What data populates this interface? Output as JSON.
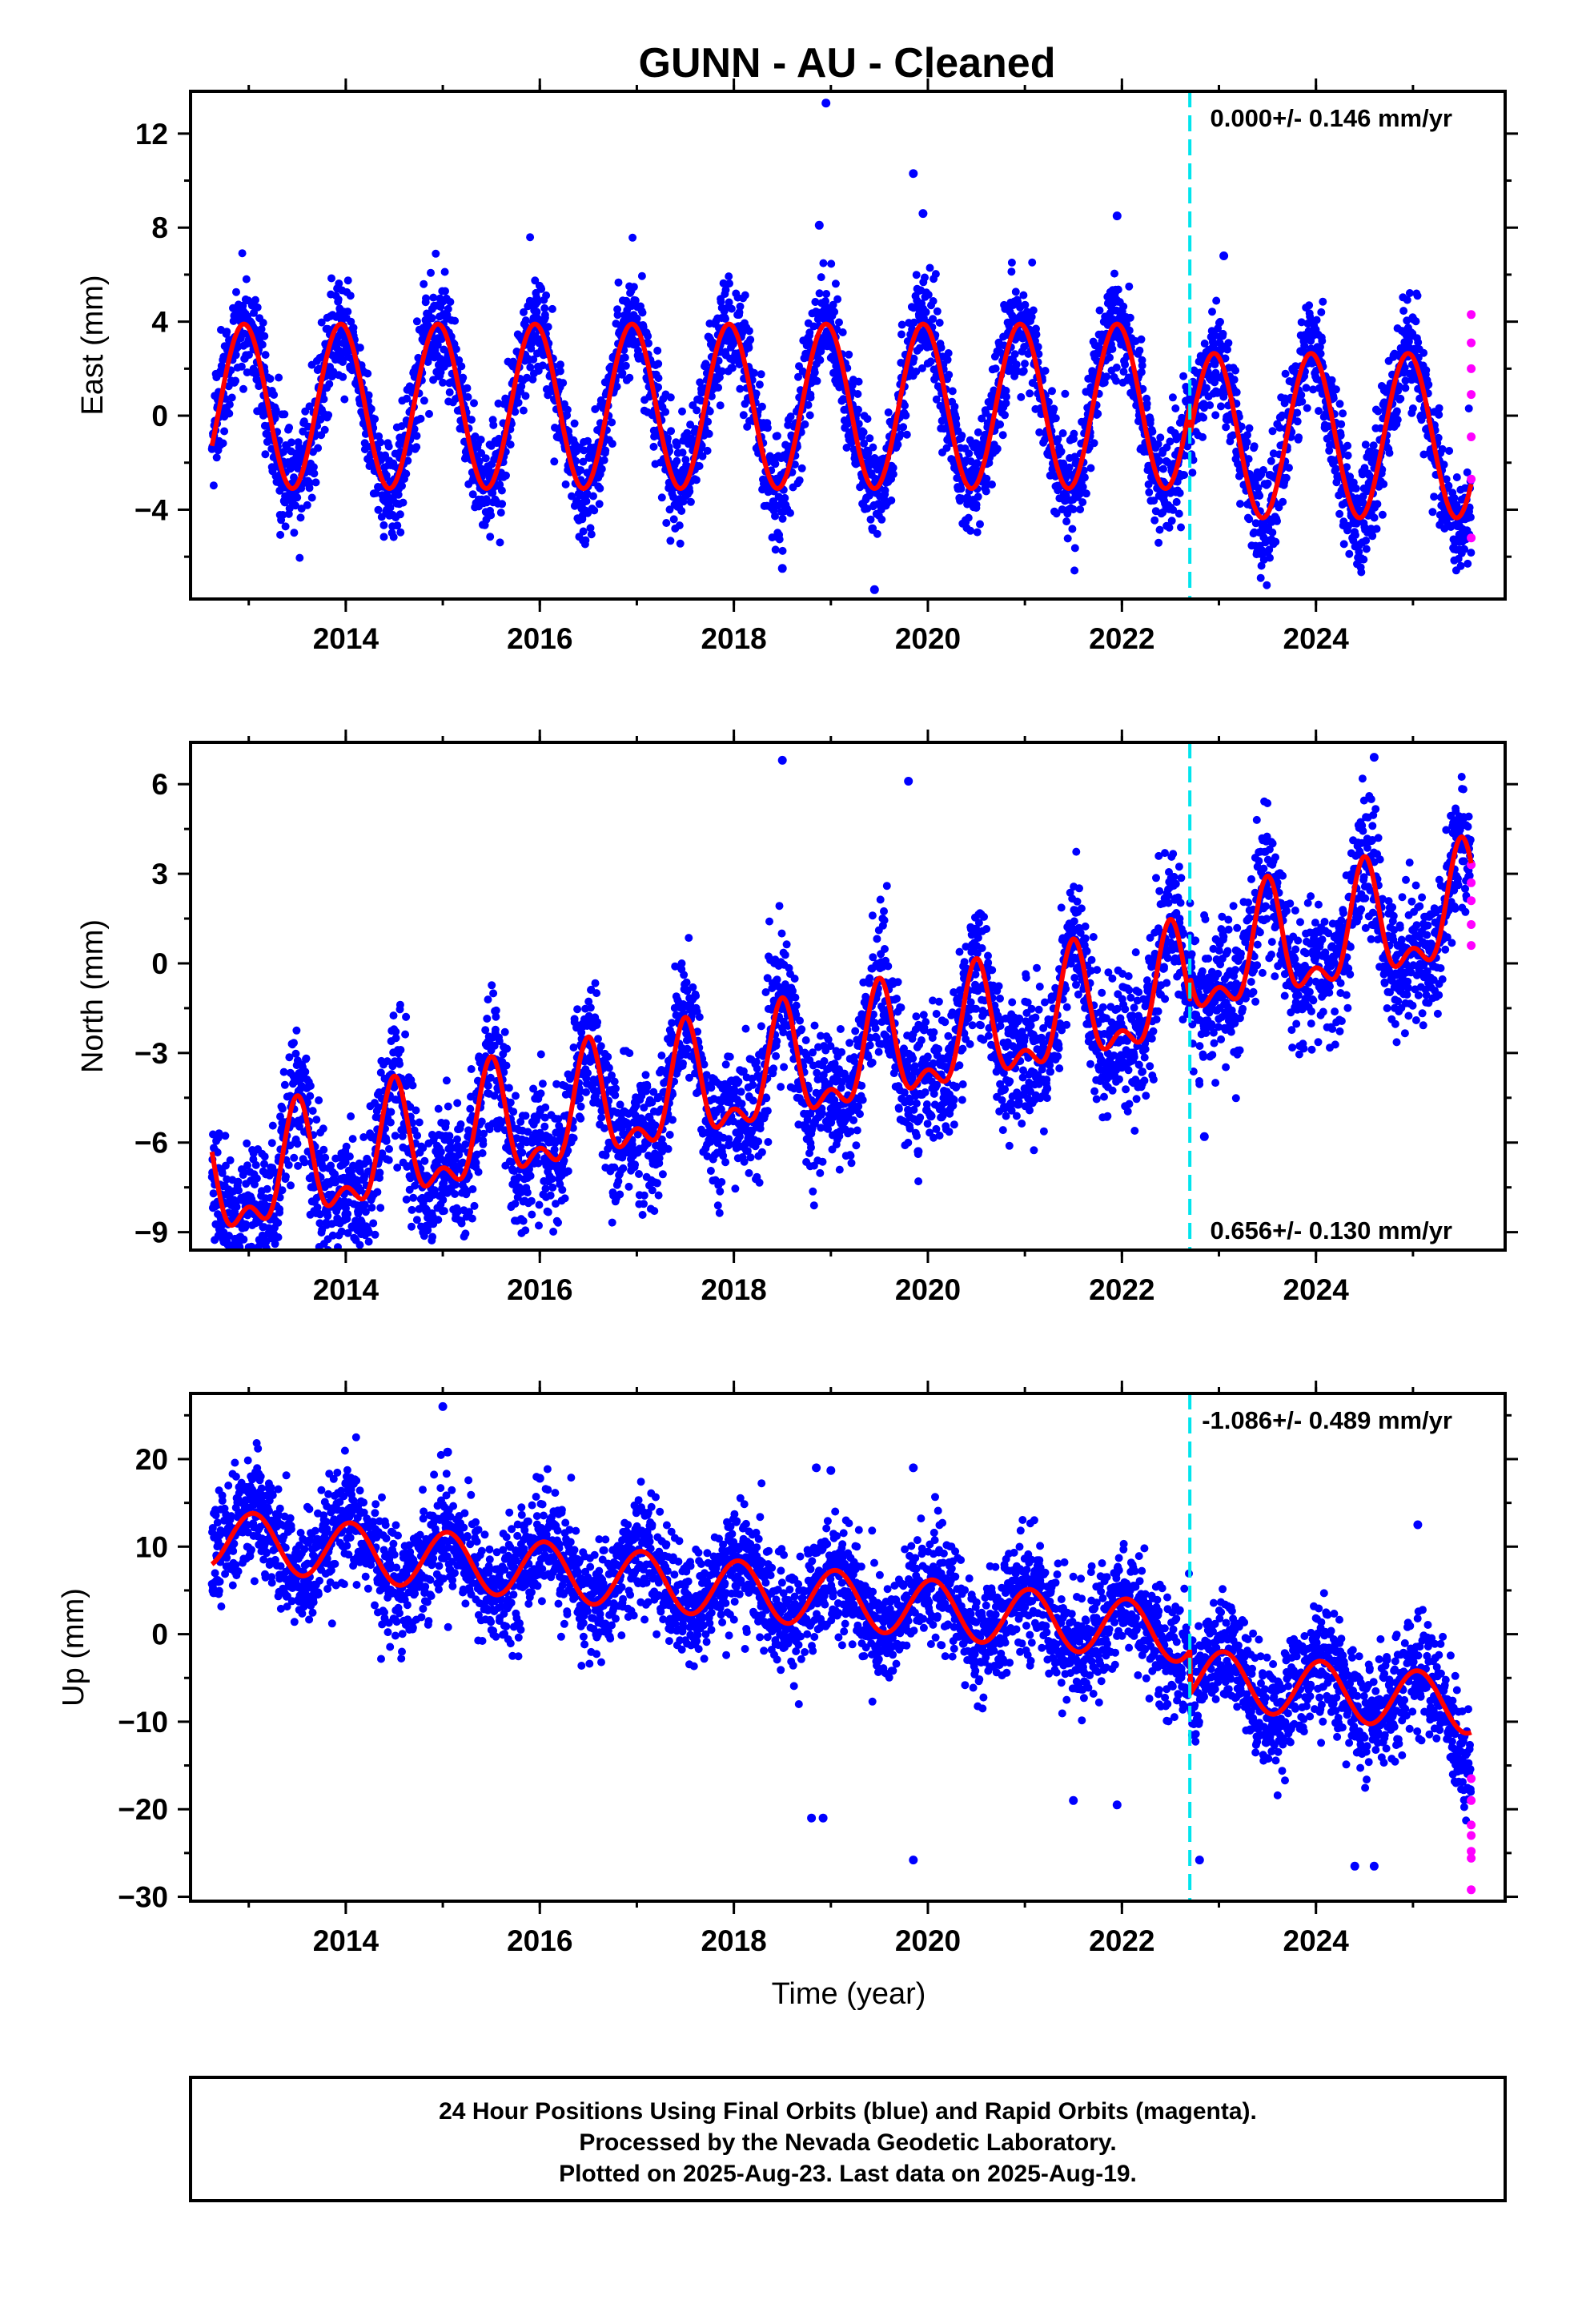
{
  "figure": {
    "title": "GUNN  - AU - Cleaned",
    "footer": [
      "24 Hour Positions Using Final Orbits (blue) and Rapid Orbits (magenta).",
      "Processed by the Nevada Geodetic Laboratory.",
      "Plotted on 2025-Aug-23. Last data on 2025-Aug-19."
    ]
  },
  "chart_data": [
    {
      "type": "scatter",
      "name": "east",
      "ylabel": "East (mm)",
      "xlabel": "",
      "xlim": [
        2012.4,
        2025.95
      ],
      "ylim": [
        -7.8,
        13.8
      ],
      "xticks": [
        2014,
        2016,
        2018,
        2020,
        2022,
        2024
      ],
      "yticks": [
        -4,
        0,
        4,
        8,
        12
      ],
      "rate_label": "0.000+/- 0.146 mm/yr",
      "rate_position": "top-right",
      "break_year": 2022.7,
      "colors": {
        "final": "#0000ff",
        "rapid": "#ff00ff",
        "model": "#ff0000",
        "break": "#00e5ee"
      },
      "model": {
        "offset_before": 0.4,
        "amplitude_before": 3.5,
        "offset_after": -0.85,
        "amplitude_after": 3.5,
        "trend": 0.0,
        "phase_peak": 0.95,
        "semiannual_amp": 0.0,
        "semiannual_phase": 0.0,
        "jump": 0.0
      },
      "noise": 1.1,
      "end_dip": -1.2,
      "outliers": [
        [
          2018.95,
          13.3
        ],
        [
          2019.85,
          10.3
        ],
        [
          2019.95,
          8.6
        ],
        [
          2018.88,
          8.1
        ],
        [
          2021.95,
          8.5
        ],
        [
          2023.05,
          6.8
        ],
        [
          2019.45,
          -7.4
        ],
        [
          2018.5,
          -6.5
        ]
      ],
      "rapid": [
        [
          2025.6,
          4.3
        ],
        [
          2025.6,
          3.1
        ],
        [
          2025.6,
          2.0
        ],
        [
          2025.6,
          0.9
        ],
        [
          2025.6,
          -0.9
        ],
        [
          2025.6,
          -2.7
        ],
        [
          2025.6,
          -5.2
        ]
      ]
    },
    {
      "type": "scatter",
      "name": "north",
      "ylabel": "North (mm)",
      "xlabel": "",
      "xlim": [
        2012.4,
        2025.95
      ],
      "ylim": [
        -9.6,
        7.4
      ],
      "xticks": [
        2014,
        2016,
        2018,
        2020,
        2022,
        2024
      ],
      "yticks": [
        -9,
        -6,
        -3,
        0,
        3,
        6
      ],
      "rate_label": "0.656+/- 0.130 mm/yr",
      "rate_position": "bottom-right",
      "break_year": 2022.7,
      "colors": {
        "final": "#0000ff",
        "rapid": "#ff00ff",
        "model": "#ff0000",
        "break": "#00e5ee"
      },
      "model": {
        "offset_before": -4.3,
        "amplitude_before": 1.7,
        "offset_after": 0.75,
        "amplitude_after": 1.7,
        "trend": 0.656,
        "phase_peak": 0.5,
        "semiannual_amp": 0.9,
        "semiannual_phase": 0.0,
        "jump": 0.0
      },
      "noise": 1.1,
      "end_dip": 0,
      "outliers": [
        [
          2018.5,
          6.8
        ],
        [
          2019.8,
          6.1
        ],
        [
          2019.9,
          -6.3
        ],
        [
          2024.6,
          6.9
        ],
        [
          2014.0,
          -8.4
        ],
        [
          2012.9,
          -9.2
        ],
        [
          2014.8,
          -9.0
        ],
        [
          2022.85,
          -5.8
        ],
        [
          2016.0,
          -6.2
        ]
      ],
      "rapid": [
        [
          2025.6,
          3.3
        ],
        [
          2025.6,
          2.7
        ],
        [
          2025.6,
          2.1
        ],
        [
          2025.6,
          1.3
        ],
        [
          2025.6,
          0.6
        ]
      ]
    },
    {
      "type": "scatter",
      "name": "up",
      "ylabel": "Up (mm)",
      "xlabel": "Time (year)",
      "xlim": [
        2012.4,
        2025.95
      ],
      "ylim": [
        -30.5,
        27.5
      ],
      "xticks": [
        2014,
        2016,
        2018,
        2020,
        2022,
        2024
      ],
      "yticks": [
        -30,
        -20,
        -10,
        0,
        10,
        20
      ],
      "rate_label": "-1.086+/- 0.489 mm/yr",
      "rate_position": "top-right",
      "break_year": 2022.7,
      "colors": {
        "final": "#0000ff",
        "rapid": "#ff00ff",
        "model": "#ff0000",
        "break": "#00e5ee"
      },
      "model": {
        "offset_before": 5.5,
        "amplitude_before": 3.3,
        "offset_after": -6.5,
        "amplitude_after": 3.3,
        "trend": -1.086,
        "phase_peak": 0.05,
        "semiannual_amp": 0.0,
        "semiannual_phase": 0.0,
        "jump": 0.0
      },
      "noise": 3.2,
      "end_dip": -3.0,
      "outliers": [
        [
          2015.0,
          26.0
        ],
        [
          2015.05,
          20.8
        ],
        [
          2013.1,
          18.3
        ],
        [
          2014.0,
          17.2
        ],
        [
          2018.85,
          19.0
        ],
        [
          2019.0,
          18.7
        ],
        [
          2019.85,
          19.0
        ],
        [
          2016.0,
          17.8
        ],
        [
          2018.8,
          -21.0
        ],
        [
          2018.92,
          -21.0
        ],
        [
          2019.85,
          -25.8
        ],
        [
          2022.8,
          -25.8
        ],
        [
          2024.4,
          -26.5
        ],
        [
          2024.6,
          -26.5
        ],
        [
          2021.5,
          -19.0
        ],
        [
          2021.95,
          -19.5
        ],
        [
          2025.05,
          12.5
        ]
      ],
      "rapid": [
        [
          2025.6,
          -16.5
        ],
        [
          2025.6,
          -19.0
        ],
        [
          2025.6,
          -21.8
        ],
        [
          2025.6,
          -23.0
        ],
        [
          2025.6,
          -24.8
        ],
        [
          2025.6,
          -25.6
        ],
        [
          2025.6,
          -29.2
        ]
      ]
    }
  ]
}
